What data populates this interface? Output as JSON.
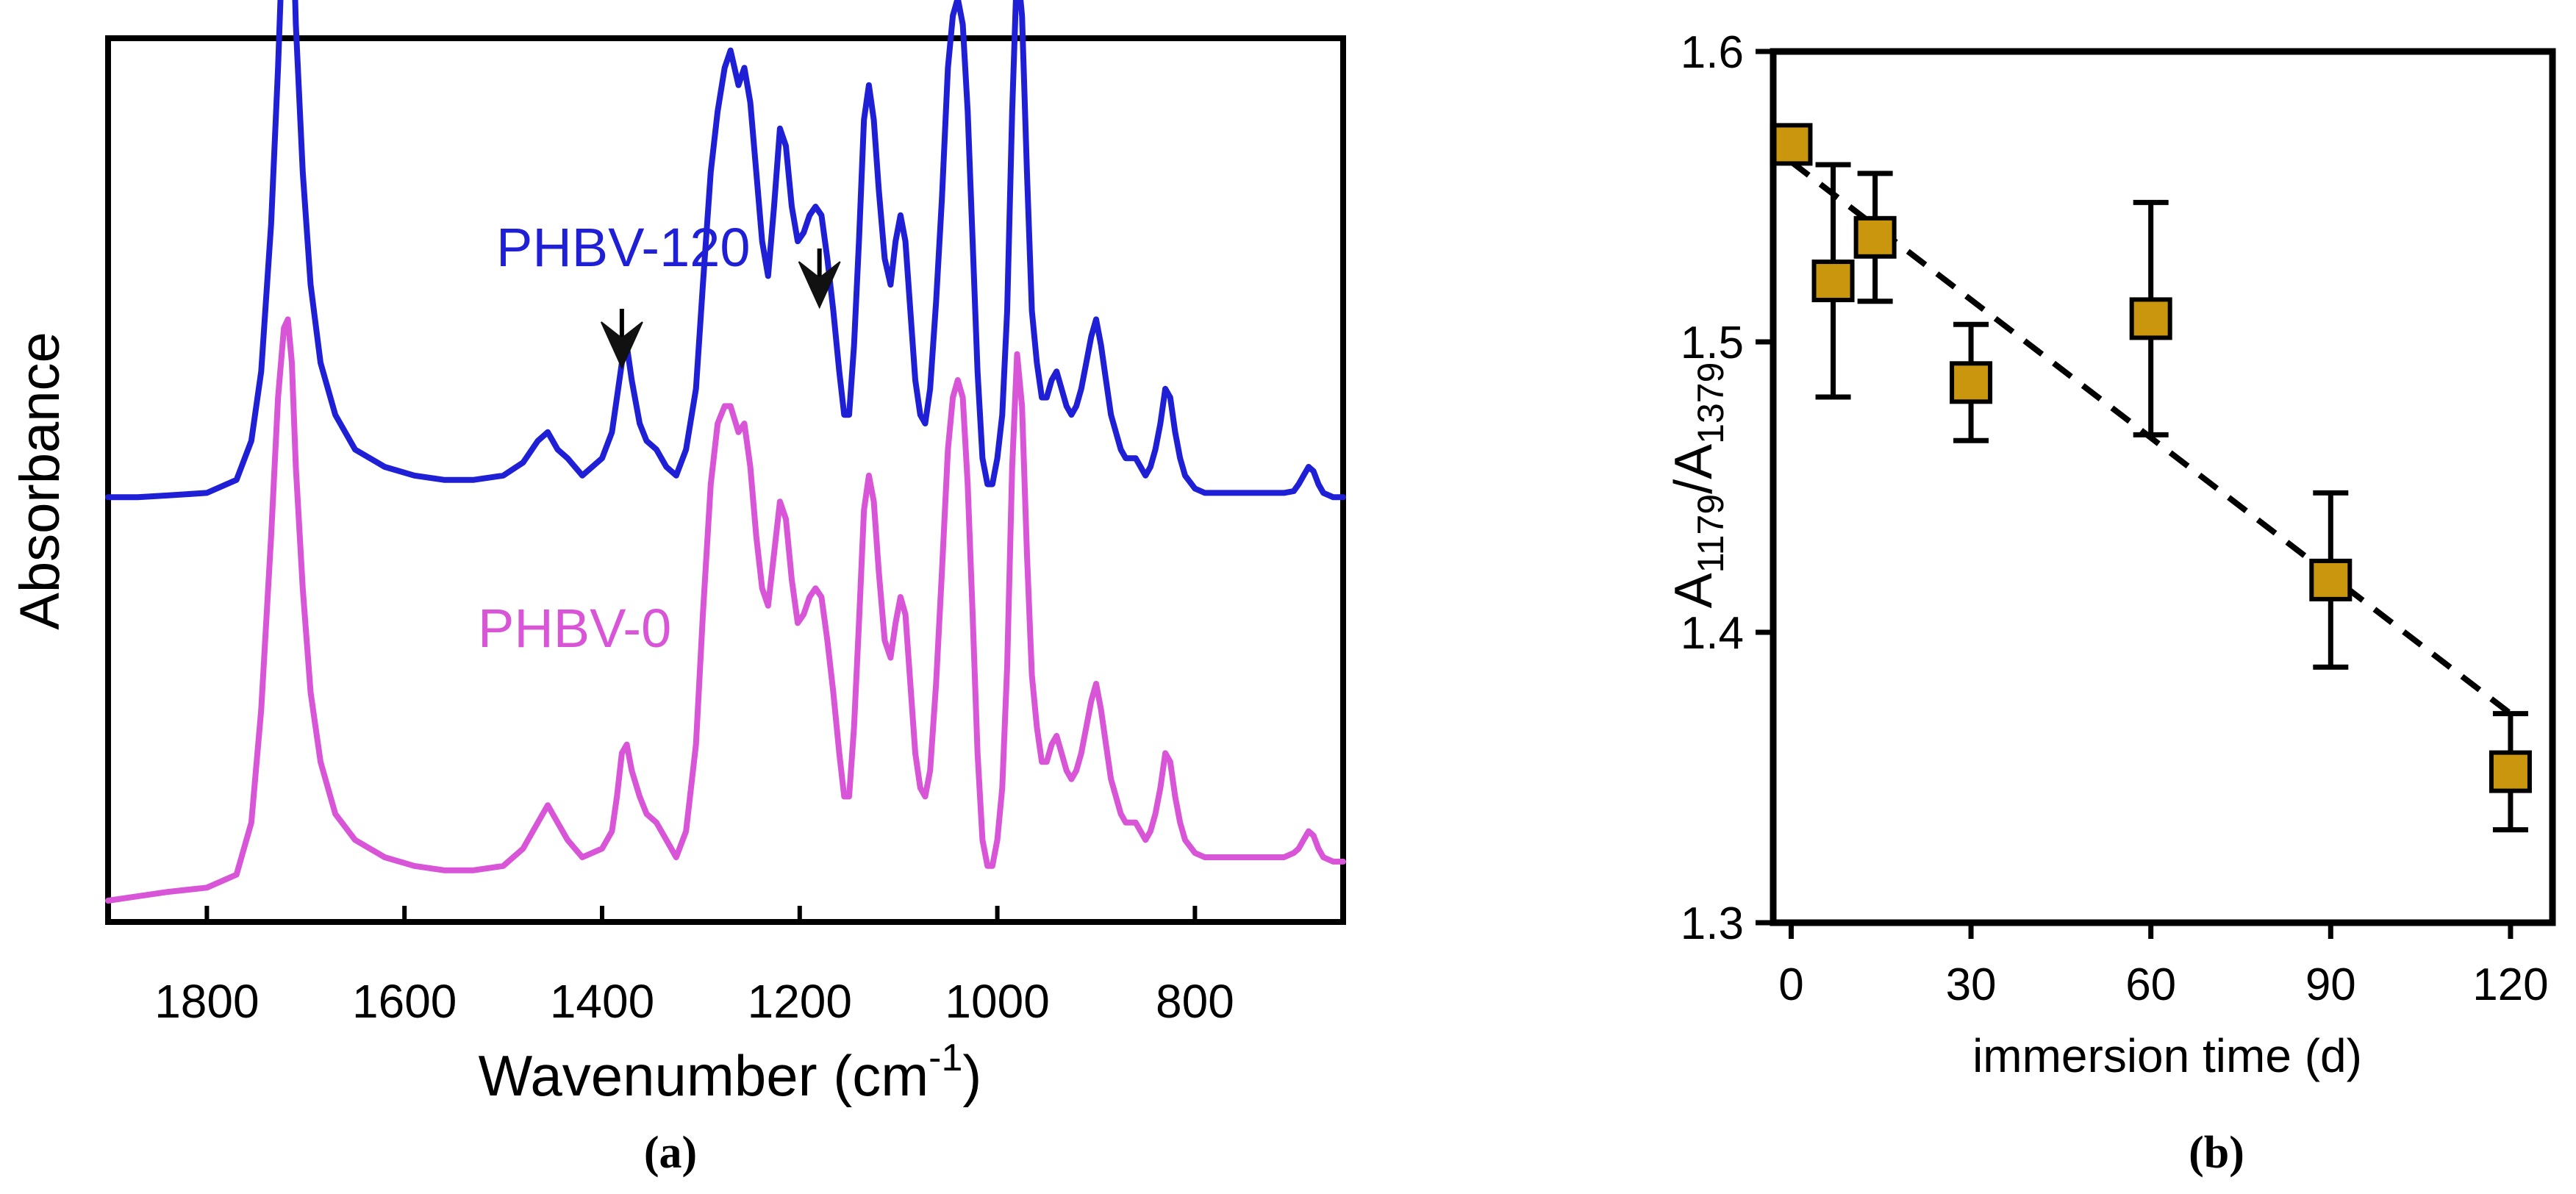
{
  "chart_data": [
    {
      "type": "line",
      "panel_label": "(a)",
      "xlabel_main": "Wavenumber (cm",
      "xlabel_sup": "-1",
      "xlabel_end": ")",
      "ylabel": "Absorbance",
      "xlim": [
        1900,
        650
      ],
      "x_reversed": true,
      "xticks": [
        "1800",
        "1600",
        "1400",
        "1200",
        "1000",
        "800"
      ],
      "ylim": [
        0,
        1
      ],
      "yticks_visible": false,
      "series": [
        {
          "name": "PHBV-120",
          "color": "#1f1fd6",
          "baseline_offset": 0.46,
          "x": [
            1900,
            1870,
            1840,
            1800,
            1770,
            1755,
            1745,
            1735,
            1728,
            1722,
            1718,
            1714,
            1710,
            1703,
            1695,
            1685,
            1670,
            1650,
            1620,
            1590,
            1560,
            1530,
            1500,
            1480,
            1465,
            1455,
            1445,
            1435,
            1420,
            1400,
            1390,
            1385,
            1380,
            1375,
            1370,
            1362,
            1355,
            1345,
            1335,
            1325,
            1315,
            1305,
            1298,
            1290,
            1283,
            1276,
            1270,
            1262,
            1256,
            1250,
            1244,
            1238,
            1232,
            1226,
            1220,
            1214,
            1208,
            1202,
            1196,
            1190,
            1184,
            1178,
            1172,
            1166,
            1160,
            1155,
            1150,
            1145,
            1140,
            1135,
            1130,
            1125,
            1120,
            1114,
            1108,
            1103,
            1098,
            1093,
            1088,
            1083,
            1078,
            1073,
            1068,
            1062,
            1056,
            1050,
            1045,
            1040,
            1035,
            1030,
            1025,
            1020,
            1015,
            1010,
            1005,
            1000,
            995,
            990,
            985,
            980,
            975,
            970,
            965,
            960,
            955,
            950,
            945,
            940,
            935,
            930,
            925,
            920,
            915,
            910,
            905,
            900,
            895,
            890,
            885,
            880,
            875,
            870,
            865,
            860,
            855,
            850,
            845,
            840,
            835,
            830,
            825,
            820,
            815,
            810,
            800,
            790,
            780,
            770,
            760,
            750,
            740,
            730,
            720,
            710,
            700,
            695,
            690,
            685,
            680,
            675,
            670,
            660,
            650
          ],
          "y": [
            0.005,
            0.005,
            0.007,
            0.01,
            0.025,
            0.07,
            0.15,
            0.32,
            0.5,
            0.69,
            0.78,
            0.72,
            0.55,
            0.38,
            0.25,
            0.16,
            0.1,
            0.06,
            0.04,
            0.03,
            0.025,
            0.025,
            0.03,
            0.045,
            0.07,
            0.08,
            0.06,
            0.05,
            0.03,
            0.05,
            0.08,
            0.12,
            0.16,
            0.18,
            0.14,
            0.09,
            0.07,
            0.06,
            0.04,
            0.03,
            0.06,
            0.13,
            0.25,
            0.38,
            0.45,
            0.5,
            0.52,
            0.48,
            0.5,
            0.46,
            0.38,
            0.3,
            0.26,
            0.34,
            0.43,
            0.41,
            0.34,
            0.3,
            0.31,
            0.33,
            0.34,
            0.33,
            0.28,
            0.22,
            0.15,
            0.1,
            0.1,
            0.18,
            0.3,
            0.44,
            0.48,
            0.44,
            0.36,
            0.28,
            0.25,
            0.3,
            0.33,
            0.3,
            0.22,
            0.14,
            0.1,
            0.09,
            0.13,
            0.23,
            0.35,
            0.5,
            0.56,
            0.58,
            0.55,
            0.45,
            0.3,
            0.15,
            0.05,
            0.02,
            0.02,
            0.05,
            0.1,
            0.22,
            0.45,
            0.62,
            0.56,
            0.38,
            0.22,
            0.16,
            0.12,
            0.12,
            0.14,
            0.15,
            0.13,
            0.11,
            0.1,
            0.11,
            0.13,
            0.16,
            0.19,
            0.21,
            0.18,
            0.14,
            0.1,
            0.08,
            0.06,
            0.05,
            0.05,
            0.05,
            0.04,
            0.03,
            0.04,
            0.06,
            0.09,
            0.13,
            0.12,
            0.08,
            0.05,
            0.03,
            0.015,
            0.01,
            0.01,
            0.01,
            0.01,
            0.01,
            0.01,
            0.01,
            0.01,
            0.01,
            0.012,
            0.02,
            0.03,
            0.04,
            0.035,
            0.02,
            0.01,
            0.005,
            0.005
          ]
        },
        {
          "name": "PHBV-0",
          "color": "#d855d8",
          "baseline_offset": 0.0,
          "x": [
            1900,
            1870,
            1840,
            1800,
            1770,
            1755,
            1745,
            1735,
            1728,
            1722,
            1718,
            1714,
            1710,
            1703,
            1695,
            1685,
            1670,
            1650,
            1620,
            1590,
            1560,
            1530,
            1500,
            1480,
            1465,
            1455,
            1445,
            1435,
            1420,
            1400,
            1390,
            1385,
            1380,
            1375,
            1370,
            1362,
            1355,
            1345,
            1335,
            1325,
            1315,
            1305,
            1298,
            1290,
            1283,
            1276,
            1270,
            1262,
            1256,
            1250,
            1244,
            1238,
            1232,
            1226,
            1220,
            1214,
            1208,
            1202,
            1196,
            1190,
            1184,
            1178,
            1172,
            1166,
            1160,
            1155,
            1150,
            1145,
            1140,
            1135,
            1130,
            1125,
            1120,
            1114,
            1108,
            1103,
            1098,
            1093,
            1088,
            1083,
            1078,
            1073,
            1068,
            1062,
            1056,
            1050,
            1045,
            1040,
            1035,
            1030,
            1025,
            1020,
            1015,
            1010,
            1005,
            1000,
            995,
            990,
            985,
            980,
            975,
            970,
            965,
            960,
            955,
            950,
            945,
            940,
            935,
            930,
            925,
            920,
            915,
            910,
            905,
            900,
            895,
            890,
            885,
            880,
            875,
            870,
            865,
            860,
            855,
            850,
            845,
            840,
            835,
            830,
            825,
            820,
            815,
            810,
            800,
            790,
            780,
            770,
            760,
            750,
            740,
            730,
            720,
            710,
            700,
            695,
            690,
            685,
            680,
            675,
            670,
            660,
            650
          ],
          "y": [
            0.0,
            0.005,
            0.01,
            0.015,
            0.03,
            0.09,
            0.22,
            0.42,
            0.58,
            0.66,
            0.67,
            0.62,
            0.5,
            0.36,
            0.24,
            0.16,
            0.1,
            0.07,
            0.05,
            0.04,
            0.035,
            0.035,
            0.04,
            0.06,
            0.09,
            0.11,
            0.09,
            0.07,
            0.05,
            0.06,
            0.08,
            0.12,
            0.17,
            0.18,
            0.15,
            0.12,
            0.1,
            0.09,
            0.07,
            0.05,
            0.08,
            0.18,
            0.33,
            0.48,
            0.55,
            0.57,
            0.57,
            0.54,
            0.55,
            0.5,
            0.42,
            0.36,
            0.34,
            0.4,
            0.46,
            0.44,
            0.37,
            0.32,
            0.33,
            0.35,
            0.36,
            0.35,
            0.3,
            0.24,
            0.17,
            0.12,
            0.12,
            0.2,
            0.32,
            0.45,
            0.49,
            0.46,
            0.38,
            0.3,
            0.28,
            0.32,
            0.35,
            0.33,
            0.25,
            0.17,
            0.13,
            0.12,
            0.15,
            0.25,
            0.38,
            0.52,
            0.58,
            0.6,
            0.58,
            0.48,
            0.33,
            0.17,
            0.07,
            0.04,
            0.04,
            0.07,
            0.13,
            0.27,
            0.5,
            0.63,
            0.57,
            0.4,
            0.26,
            0.2,
            0.16,
            0.16,
            0.18,
            0.19,
            0.17,
            0.15,
            0.14,
            0.15,
            0.17,
            0.2,
            0.23,
            0.25,
            0.22,
            0.18,
            0.14,
            0.12,
            0.1,
            0.09,
            0.09,
            0.09,
            0.08,
            0.07,
            0.08,
            0.1,
            0.13,
            0.17,
            0.16,
            0.12,
            0.09,
            0.07,
            0.055,
            0.05,
            0.05,
            0.05,
            0.05,
            0.05,
            0.05,
            0.05,
            0.05,
            0.05,
            0.055,
            0.06,
            0.07,
            0.08,
            0.075,
            0.06,
            0.05,
            0.045,
            0.045
          ]
        }
      ],
      "annotations": [
        {
          "text": "PHBV-120",
          "color": "#1f1fd6"
        },
        {
          "text": "PHBV-0",
          "color": "#d855d8"
        },
        {
          "type": "arrow",
          "at_x": 1380
        },
        {
          "type": "arrow",
          "at_x": 1180
        }
      ]
    },
    {
      "type": "scatter",
      "panel_label": "(b)",
      "xlabel": "immersion time (d)",
      "ylabel_base": "A",
      "ylabel_sub1": "1179",
      "ylabel_slash": "/A",
      "ylabel_sub2": "1379",
      "xlim": [
        -3,
        127
      ],
      "ylim": [
        1.3,
        1.6
      ],
      "xticks": [
        0,
        30,
        60,
        90,
        120
      ],
      "xtick_labels": [
        "0",
        "30",
        "60",
        "90",
        "120"
      ],
      "yticks": [
        1.3,
        1.4,
        1.5,
        1.6
      ],
      "ytick_labels": [
        "1.3",
        "1.4",
        "1.5",
        "1.6"
      ],
      "marker_color": "#c9960e",
      "series": [
        {
          "name": "A1179/A1379",
          "x": [
            0,
            7,
            14,
            30,
            60,
            90,
            120
          ],
          "y": [
            1.568,
            1.521,
            1.536,
            1.486,
            1.508,
            1.418,
            1.352
          ],
          "err": [
            0.0,
            0.04,
            0.022,
            0.02,
            0.04,
            0.03,
            0.02
          ]
        }
      ],
      "trendline": {
        "style": "dashed",
        "x": [
          0,
          120
        ],
        "y": [
          1.562,
          1.372
        ]
      }
    }
  ]
}
